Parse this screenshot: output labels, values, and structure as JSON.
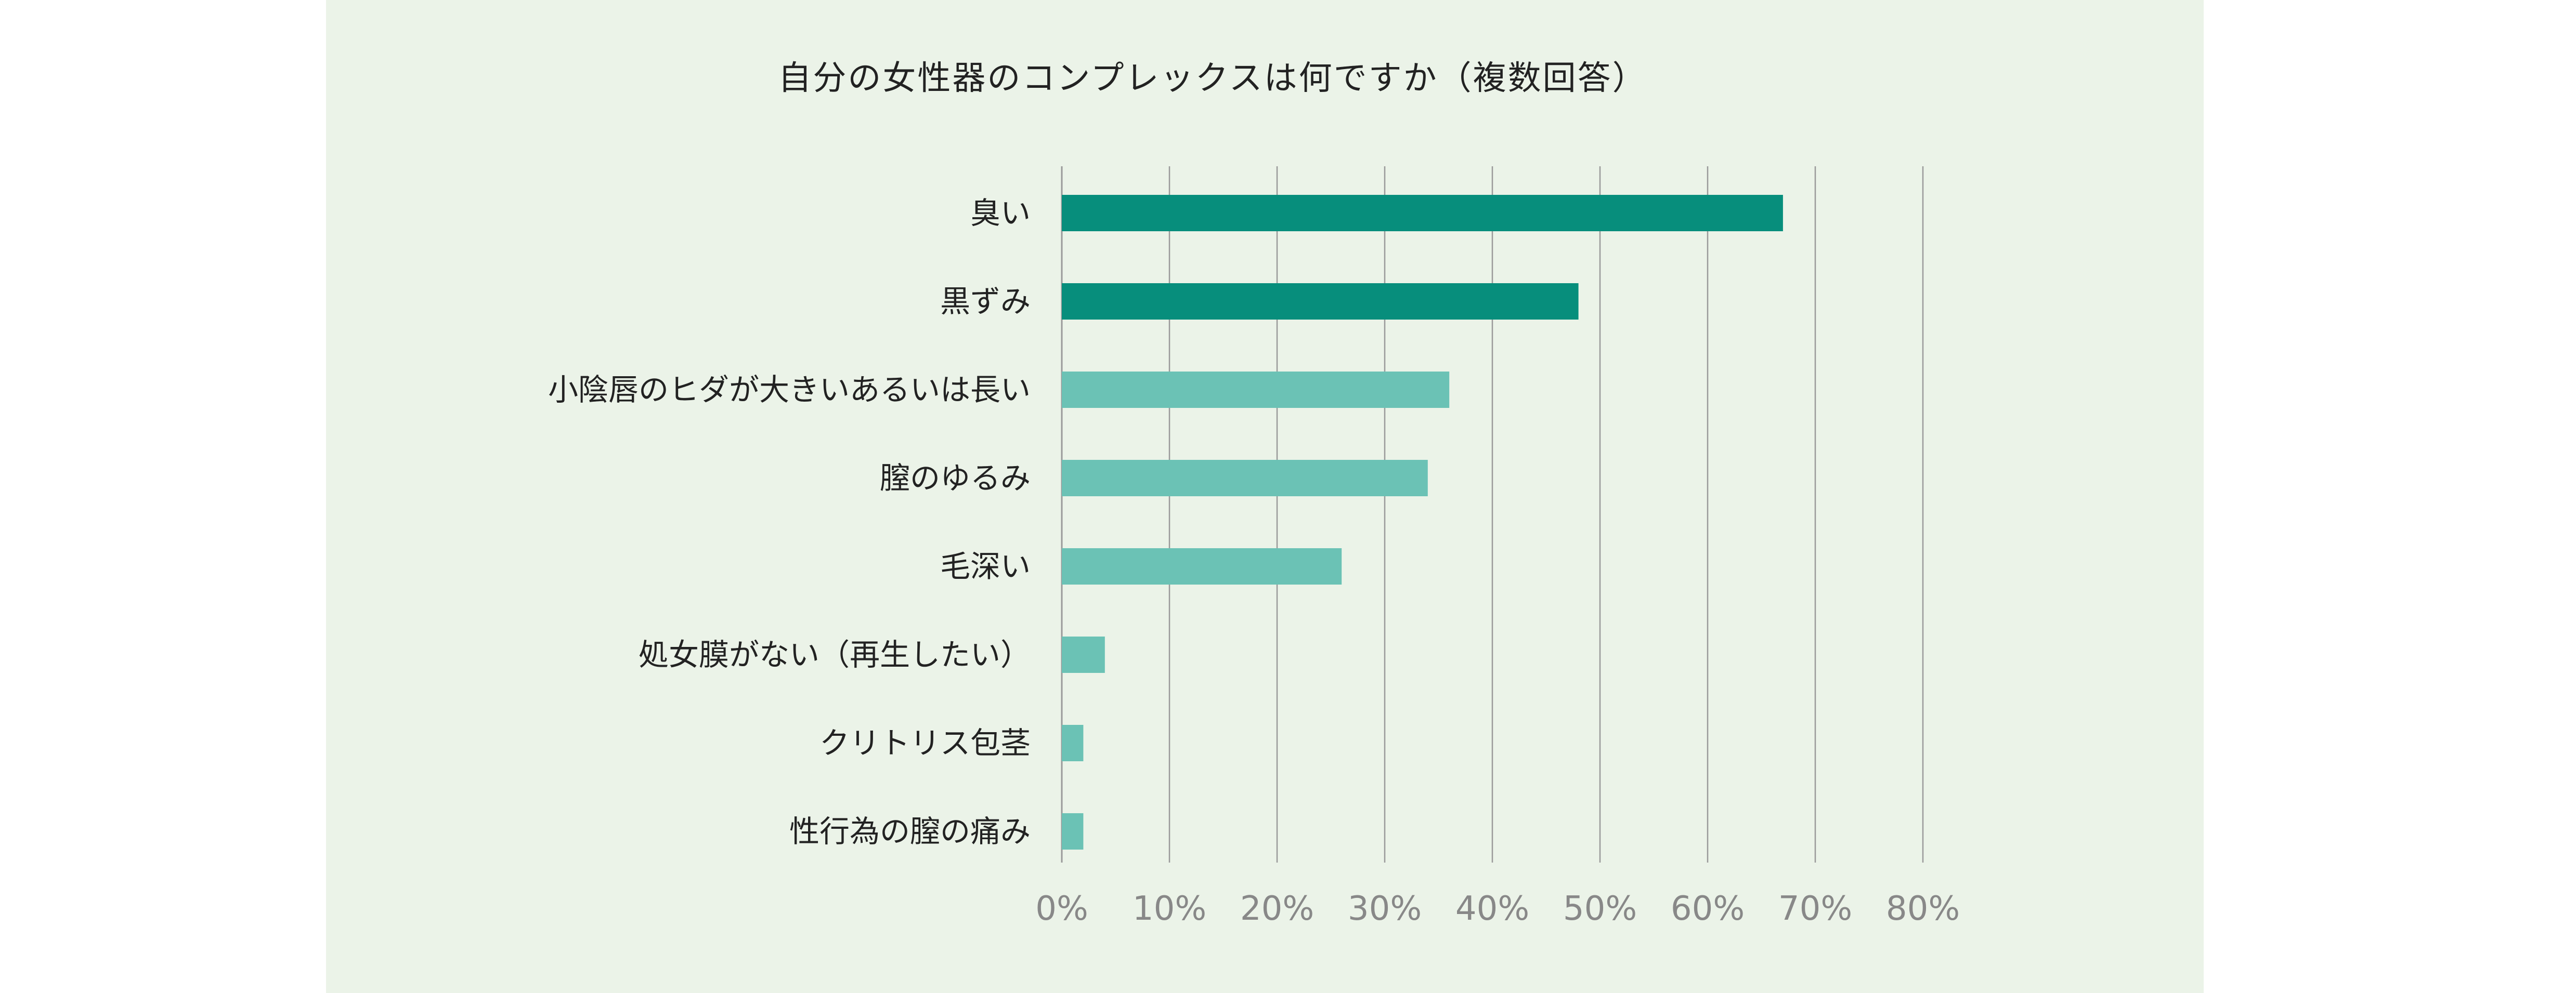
{
  "chart_data": {
    "type": "bar",
    "orientation": "horizontal",
    "title": "自分の女性器のコンプレックスは何ですか（複数回答）",
    "categories": [
      "臭い",
      "黒ずみ",
      "小陰唇のヒダが大きいあるいは長い",
      "膣のゆるみ",
      "毛深い",
      "処女膜がない（再生したい）",
      "クリトリス包茎",
      "性行為の膣の痛み"
    ],
    "values": [
      67,
      48,
      36,
      34,
      26,
      4,
      2,
      2
    ],
    "unit": "%",
    "xlim": [
      0,
      80
    ],
    "xticks": [
      "0%",
      "10%",
      "20%",
      "30%",
      "40%",
      "50%",
      "60%",
      "70%",
      "80%"
    ],
    "grid": true,
    "colors": {
      "highlight": "#078e7c",
      "normal": "#6bc2b5",
      "background": "#ebf3e8"
    },
    "highlight_count": 2
  }
}
